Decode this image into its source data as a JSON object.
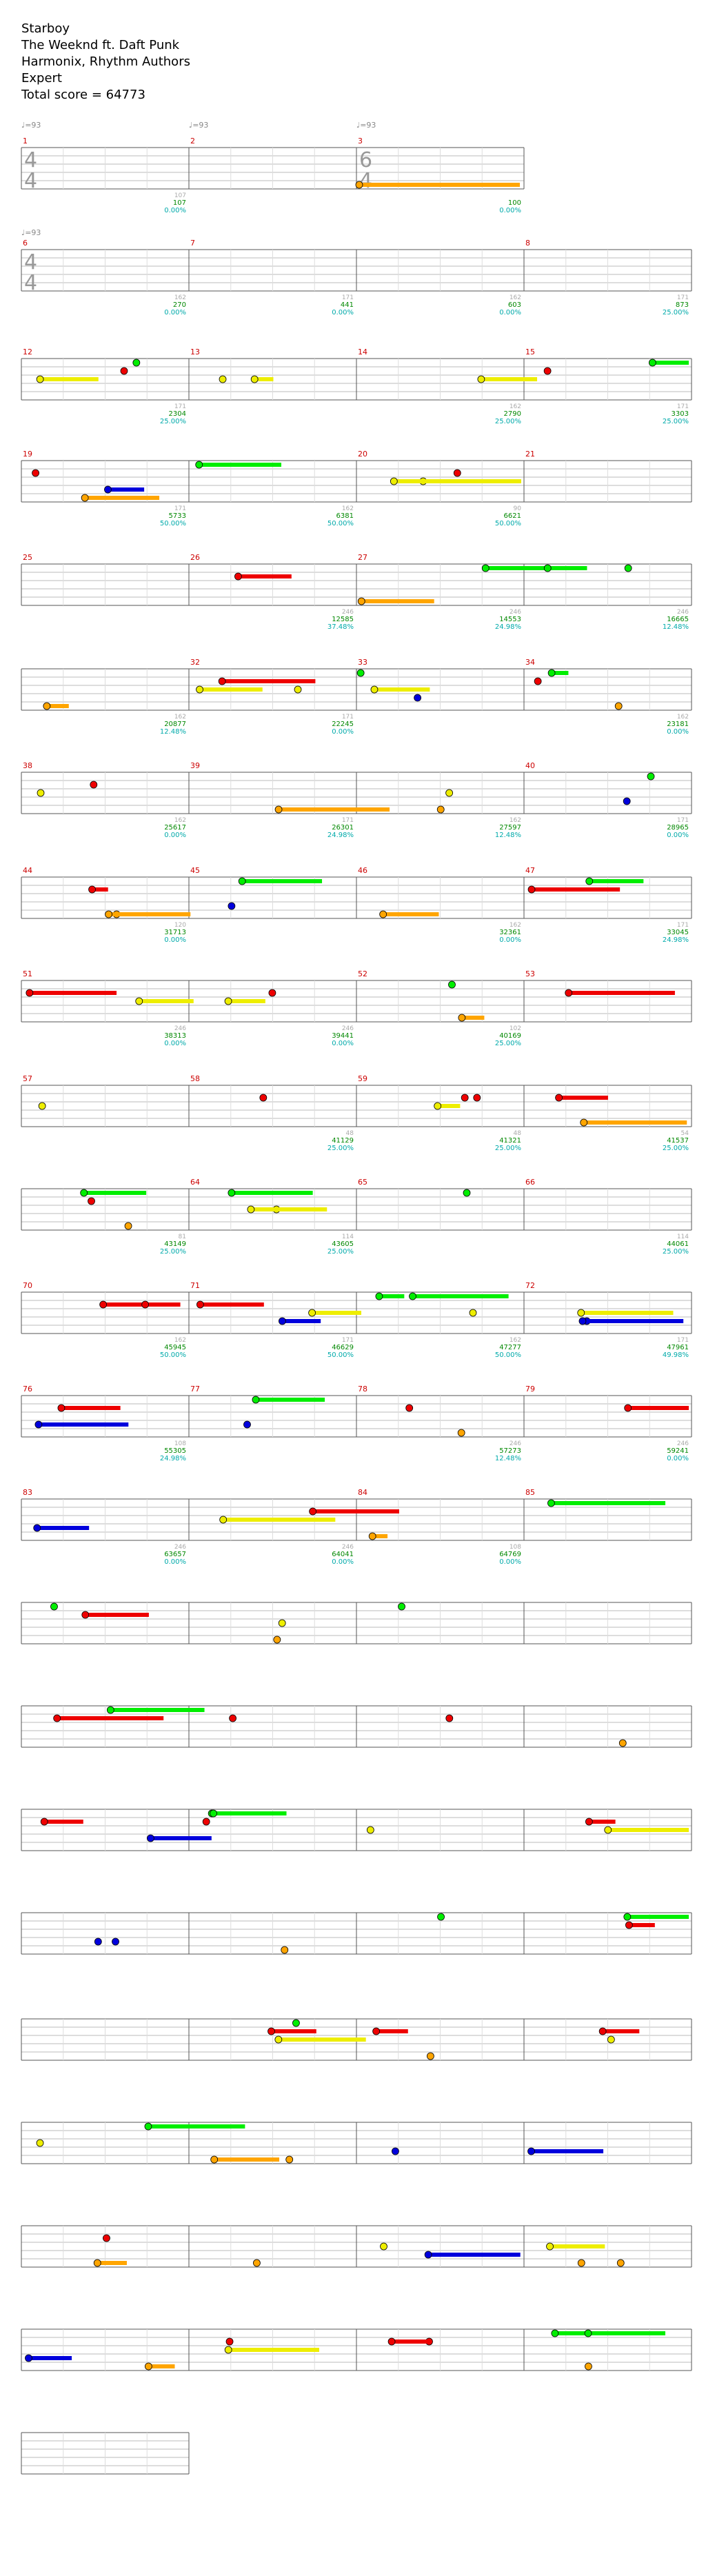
{
  "song": {
    "title": "Starboy",
    "artist": "The Weeknd ft. Daft Punk",
    "charter": "Harmonix, Rhythm Authors",
    "difficulty": "Expert",
    "total_score": "Total score = 64773"
  },
  "colors": {
    "green": "#00ee00",
    "red": "#ee0000",
    "yellow": "#eeee00",
    "blue": "#0000dd",
    "orange": "#ffa500",
    "purple": "#aa00aa",
    "star_power_bg": "#00ff00",
    "solo_bg": "#0000ff",
    "measure_number": "#cc0000",
    "score_text": "#008800",
    "percent_text": "#00aaaa",
    "note_count_text": "#aaaaaa",
    "tempo_text": "#888888"
  },
  "legend_icons": [
    "tempo-marker-icon",
    "star-note-icon",
    "note-gem-icon"
  ],
  "tempo_marks": [
    "♩=93",
    "♩=93",
    "♩=93",
    "♩=93"
  ],
  "time_signatures": [
    "4/4",
    "6/4",
    "4/4"
  ],
  "measures": [
    {
      "n": "1",
      "notes": "",
      "score": "",
      "pct": ""
    },
    {
      "n": "2",
      "notes": "0",
      "score": "0",
      "pct": "0.00%"
    },
    {
      "n": "3",
      "notes": "0",
      "score": "0",
      "pct": "0.00%"
    },
    {
      "n": "",
      "notes": "107",
      "score": "107",
      "pct": "0.00%"
    },
    {
      "n": "4",
      "notes": "",
      "score": "",
      "pct": ""
    },
    {
      "n": "5",
      "notes": "",
      "score": "100",
      "pct": "0.00%"
    },
    {
      "n": "6",
      "notes": "",
      "score": "100",
      "pct": "0.00%"
    },
    {
      "n": "7",
      "notes": "",
      "score": "100",
      "pct": "0.00%"
    },
    {
      "n": "",
      "notes": "",
      "score": "100",
      "pct": "0.00%"
    },
    {
      "n": "8",
      "notes": "",
      "score": "",
      "pct": ""
    },
    {
      "n": "9",
      "notes": "162",
      "score": "270",
      "pct": "0.00%"
    },
    {
      "n": "10",
      "notes": "171",
      "score": "441",
      "pct": "0.00%"
    },
    {
      "n": "11",
      "notes": "162",
      "score": "603",
      "pct": "0.00%"
    },
    {
      "n": "",
      "notes": "171",
      "score": "873",
      "pct": "25.00%"
    },
    {
      "n": "12",
      "notes": "",
      "score": "",
      "pct": ""
    },
    {
      "n": "13",
      "notes": "162",
      "score": "1197",
      "pct": "25.00%"
    },
    {
      "n": "14",
      "notes": "171",
      "score": "1539",
      "pct": "25.00%"
    },
    {
      "n": "15",
      "notes": "162",
      "score": "1863",
      "pct": "25.00%"
    },
    {
      "n": "",
      "notes": "171",
      "score": "2304",
      "pct": "25.00%"
    },
    {
      "n": "16",
      "notes": "",
      "score": "",
      "pct": ""
    },
    {
      "n": "17",
      "notes": "162",
      "score": "2790",
      "pct": "25.00%"
    },
    {
      "n": "18",
      "notes": "171",
      "score": "3303",
      "pct": "25.00%"
    },
    {
      "n": "19",
      "notes": "162",
      "score": "3789",
      "pct": "25.00%"
    },
    {
      "n": "",
      "notes": "171",
      "score": "4401",
      "pct": "50.00%"
    },
    {
      "n": "20",
      "notes": "",
      "score": "",
      "pct": ""
    },
    {
      "n": "21",
      "notes": "162",
      "score": "5049",
      "pct": "50.00%"
    },
    {
      "n": "22",
      "notes": "171",
      "score": "5733",
      "pct": "50.00%"
    },
    {
      "n": "23",
      "notes": "162",
      "score": "6381",
      "pct": "50.00%"
    },
    {
      "n": "",
      "notes": "90",
      "score": "6621",
      "pct": "50.00%"
    },
    {
      "n": "24",
      "notes": "",
      "score": "",
      "pct": ""
    },
    {
      "n": "25",
      "notes": "162",
      "score": "7269",
      "pct": "50.00%"
    },
    {
      "n": "26",
      "notes": "171",
      "score": "7953",
      "pct": "74.98%"
    },
    {
      "n": "27",
      "notes": "162",
      "score": "9537",
      "pct": "62.48%"
    },
    {
      "n": "",
      "notes": "171",
      "score": "10617",
      "pct": "49.98%"
    },
    {
      "n": "28",
      "notes": "",
      "score": "",
      "pct": ""
    },
    {
      "n": "29",
      "notes": "246",
      "score": "12585",
      "pct": "37.48%"
    },
    {
      "n": "30",
      "notes": "246",
      "score": "14553",
      "pct": "24.98%"
    },
    {
      "n": "31",
      "notes": "246",
      "score": "16665",
      "pct": "12.48%"
    },
    {
      "n": "",
      "notes": "108",
      "score": "17961",
      "pct": "0.00%"
    },
    {
      "n": "32",
      "notes": "",
      "score": "",
      "pct": ""
    },
    {
      "n": "33",
      "notes": "162",
      "score": "18897",
      "pct": "0.00%"
    },
    {
      "n": "34",
      "notes": "171",
      "score": "19581",
      "pct": "24.98%"
    },
    {
      "n": "35",
      "notes": "162",
      "score": "20877",
      "pct": "12.48%"
    },
    {
      "n": "",
      "notes": "171",
      "score": "22245",
      "pct": "0.00%"
    },
    {
      "n": "36",
      "notes": "",
      "score": "",
      "pct": ""
    },
    {
      "n": "37",
      "notes": "162",
      "score": "23181",
      "pct": "0.00%"
    },
    {
      "n": "38",
      "notes": "171",
      "score": "23865",
      "pct": "0.00%"
    },
    {
      "n": "39",
      "notes": "162",
      "score": "24513",
      "pct": "0.00%"
    },
    {
      "n": "",
      "notes": "114",
      "score": "24969",
      "pct": "0.00%"
    },
    {
      "n": "40",
      "notes": "",
      "score": "",
      "pct": ""
    },
    {
      "n": "41",
      "notes": "162",
      "score": "25617",
      "pct": "0.00%"
    },
    {
      "n": "42",
      "notes": "171",
      "score": "26301",
      "pct": "24.98%"
    },
    {
      "n": "43",
      "notes": "162",
      "score": "27597",
      "pct": "12.48%"
    },
    {
      "n": "",
      "notes": "171",
      "score": "28965",
      "pct": "0.00%"
    },
    {
      "n": "44",
      "notes": "",
      "score": "",
      "pct": ""
    },
    {
      "n": "45",
      "notes": "162",
      "score": "29901",
      "pct": "0.00%"
    },
    {
      "n": "46",
      "notes": "126",
      "score": "30585",
      "pct": "0.00%"
    },
    {
      "n": "47",
      "notes": "162",
      "score": "31233",
      "pct": "0.00%"
    },
    {
      "n": "",
      "notes": "120",
      "score": "31713",
      "pct": "0.00%"
    },
    {
      "n": "48",
      "notes": "",
      "score": "",
      "pct": ""
    },
    {
      "n": "49",
      "notes": "162",
      "score": "32361",
      "pct": "0.00%"
    },
    {
      "n": "50",
      "notes": "171",
      "score": "33045",
      "pct": "24.98%"
    },
    {
      "n": "51",
      "notes": "162",
      "score": "33693",
      "pct": "24.98%"
    },
    {
      "n": "",
      "notes": "171",
      "score": "34377",
      "pct": "24.98%"
    },
    {
      "n": "52",
      "notes": "",
      "score": "",
      "pct": ""
    },
    {
      "n": "53",
      "notes": "246",
      "score": "36345",
      "pct": "12.48%"
    },
    {
      "n": "54",
      "notes": "246",
      "score": "38313",
      "pct": "0.00%"
    },
    {
      "n": "55",
      "notes": "246",
      "score": "39441",
      "pct": "0.00%"
    },
    {
      "n": "",
      "notes": "102",
      "score": "40169",
      "pct": "25.00%"
    },
    {
      "n": "56",
      "notes": "",
      "score": "",
      "pct": ""
    },
    {
      "n": "57",
      "notes": "48",
      "score": "40361",
      "pct": "25.00%"
    },
    {
      "n": "58",
      "notes": "48",
      "score": "40553",
      "pct": "25.00%"
    },
    {
      "n": "59",
      "notes": "48",
      "score": "40745",
      "pct": "25.00%"
    },
    {
      "n": "",
      "notes": "48",
      "score": "40937",
      "pct": "25.00%"
    },
    {
      "n": "60",
      "notes": "",
      "score": "",
      "pct": ""
    },
    {
      "n": "61",
      "notes": "48",
      "score": "41129",
      "pct": "25.00%"
    },
    {
      "n": "62",
      "notes": "48",
      "score": "41321",
      "pct": "25.00%"
    },
    {
      "n": "63",
      "notes": "54",
      "score": "41537",
      "pct": "25.00%"
    },
    {
      "n": "",
      "notes": "46",
      "score": "41721",
      "pct": "25.00%"
    },
    {
      "n": "64",
      "notes": "",
      "score": "",
      "pct": ""
    },
    {
      "n": "65",
      "notes": "162",
      "score": "42369",
      "pct": "25.00%"
    },
    {
      "n": "66",
      "notes": "171",
      "score": "42825",
      "pct": "25.00%"
    },
    {
      "n": "67",
      "notes": "81",
      "score": "43149",
      "pct": "25.00%"
    },
    {
      "n": "",
      "notes": "114",
      "score": "43605",
      "pct": "25.00%"
    },
    {
      "n": "68",
      "notes": "",
      "score": "",
      "pct": ""
    },
    {
      "n": "69",
      "notes": "114",
      "score": "44061",
      "pct": "25.00%"
    },
    {
      "n": "70",
      "notes": "114",
      "score": "44517",
      "pct": "25.00%"
    },
    {
      "n": "71",
      "notes": "81",
      "score": "44841",
      "pct": "25.00%"
    },
    {
      "n": "",
      "notes": "114",
      "score": "45297",
      "pct": "50.00%"
    },
    {
      "n": "72",
      "notes": "",
      "score": "",
      "pct": ""
    },
    {
      "n": "73",
      "notes": "162",
      "score": "45945",
      "pct": "50.00%"
    },
    {
      "n": "74",
      "notes": "171",
      "score": "46629",
      "pct": "50.00%"
    },
    {
      "n": "75",
      "notes": "162",
      "score": "47277",
      "pct": "50.00%"
    },
    {
      "n": "",
      "notes": "171",
      "score": "47961",
      "pct": "49.98%"
    },
    {
      "n": "76",
      "notes": "",
      "score": "",
      "pct": ""
    },
    {
      "n": "77",
      "notes": "246",
      "score": "49929",
      "pct": "37.48%"
    },
    {
      "n": "78",
      "notes": "246",
      "score": "51897",
      "pct": "49.98%"
    },
    {
      "n": "79",
      "notes": "246",
      "score": "53865",
      "pct": "37.48%"
    },
    {
      "n": "",
      "notes": "108",
      "score": "55305",
      "pct": "24.98%"
    },
    {
      "n": "80",
      "notes": "",
      "score": "",
      "pct": ""
    },
    {
      "n": "81",
      "notes": "246",
      "score": "57273",
      "pct": "12.48%"
    },
    {
      "n": "82",
      "notes": "246",
      "score": "59241",
      "pct": "0.00%"
    },
    {
      "n": "83",
      "notes": "246",
      "score": "60585",
      "pct": "0.00%"
    },
    {
      "n": "",
      "notes": "108",
      "score": "61869",
      "pct": "0.00%"
    },
    {
      "n": "84",
      "notes": "",
      "score": "",
      "pct": ""
    },
    {
      "n": "85",
      "notes": "246",
      "score": "62673",
      "pct": "0.00%"
    },
    {
      "n": "86",
      "notes": "246",
      "score": "63657",
      "pct": "0.00%"
    },
    {
      "n": "87",
      "notes": "246",
      "score": "64041",
      "pct": "0.00%"
    },
    {
      "n": "",
      "notes": "108",
      "score": "64769",
      "pct": "0.00%"
    },
    {
      "n": "88",
      "notes": "",
      "score": "",
      "pct": ""
    },
    {
      "n": "",
      "notes": "",
      "score": "64773",
      "pct": "0.00%"
    }
  ]
}
